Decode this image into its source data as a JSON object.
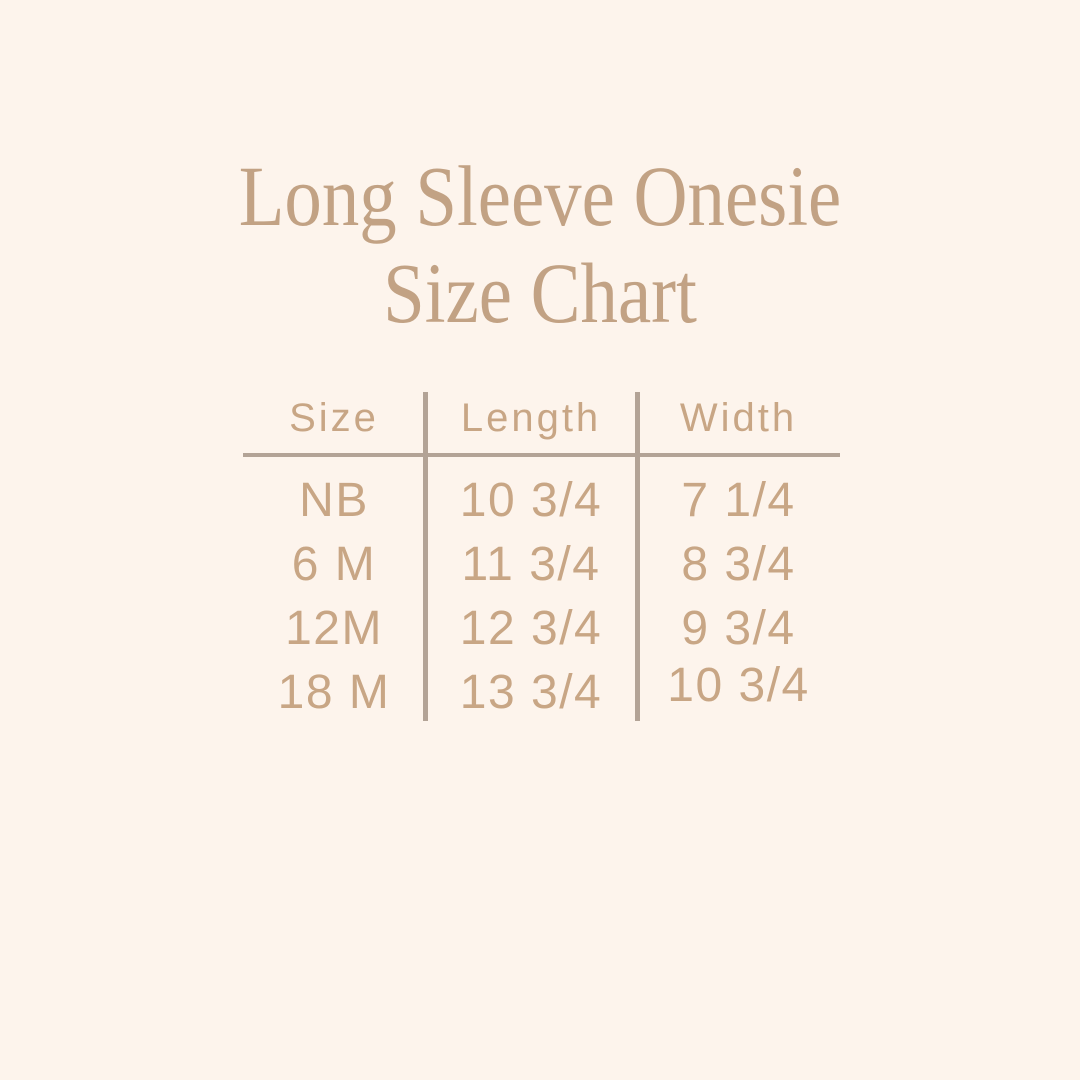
{
  "colors": {
    "background": "#fdf4ec",
    "title_text": "#c2a284",
    "table_text": "#c8a685",
    "table_lines": "#b3a396"
  },
  "title": {
    "line1": "Long Sleeve Onesie",
    "line2": "Size Chart"
  },
  "table": {
    "columns": [
      "Size",
      "Length",
      "Width"
    ],
    "rows": [
      {
        "size": "NB",
        "length": "10 3/4",
        "width": "7 1/4"
      },
      {
        "size": "6 M",
        "length": "11 3/4",
        "width": "8 3/4"
      },
      {
        "size": "12M",
        "length": "12 3/4",
        "width": "9 3/4"
      },
      {
        "size": "18 M",
        "length": "13 3/4",
        "width": "10 3/4"
      }
    ]
  },
  "chart_data": {
    "type": "table",
    "title": "Long Sleeve Onesie Size Chart",
    "columns": [
      "Size",
      "Length",
      "Width"
    ],
    "rows": [
      [
        "NB",
        "10 3/4",
        "7 1/4"
      ],
      [
        "6 M",
        "11 3/4",
        "8 3/4"
      ],
      [
        "12M",
        "12 3/4",
        "9 3/4"
      ],
      [
        "18 M",
        "13 3/4",
        "10 3/4"
      ]
    ]
  }
}
